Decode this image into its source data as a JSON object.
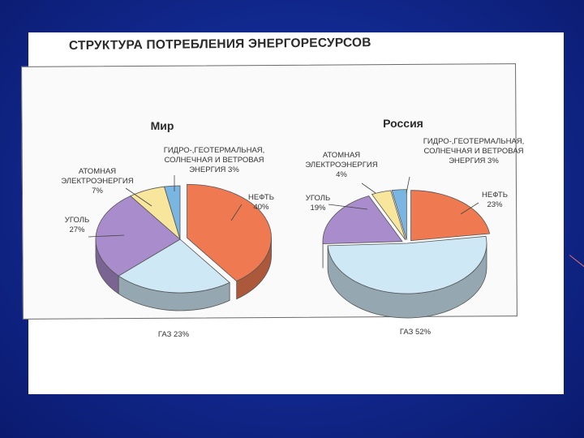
{
  "title": "СТРУКТУРА ПОТРЕБЛЕНИЯ ЭНЕРГОРЕСУРСОВ",
  "colors": {
    "oil": "#ef7a52",
    "gas": "#cfe8f6",
    "coal": "#a98ccb",
    "nuclear": "#f7e69b",
    "renewables": "#7ab6e2"
  },
  "chart_data": [
    {
      "type": "pie",
      "title": "Мир",
      "slices": [
        {
          "key": "oil",
          "label": [
            "НЕФТЬ",
            "40%"
          ],
          "value": 40
        },
        {
          "key": "gas",
          "label": [
            "ГАЗ 23%"
          ],
          "value": 23
        },
        {
          "key": "coal",
          "label": [
            "УГОЛЬ",
            "27%"
          ],
          "value": 27
        },
        {
          "key": "nuclear",
          "label": [
            "АТОМНАЯ",
            "ЭЛЕКТРОЭНЕРГИЯ",
            "7%"
          ],
          "value": 7
        },
        {
          "key": "renewables",
          "label": [
            "ГИДРО-,ГЕОТЕРМАЛЬНАЯ,",
            "СОЛНЕЧНАЯ И ВЕТРОВАЯ",
            "ЭНЕРГИЯ 3%"
          ],
          "value": 3
        }
      ]
    },
    {
      "type": "pie",
      "title": "Россия",
      "slices": [
        {
          "key": "oil",
          "label": [
            "НЕФТЬ",
            "23%"
          ],
          "value": 23
        },
        {
          "key": "gas",
          "label": [
            "ГАЗ 52%"
          ],
          "value": 52
        },
        {
          "key": "coal",
          "label": [
            "УГОЛЬ",
            "19%"
          ],
          "value": 19
        },
        {
          "key": "nuclear",
          "label": [
            "АТОМНАЯ",
            "ЭЛЕКТРОЭНЕРГИЯ",
            "4%"
          ],
          "value": 4
        },
        {
          "key": "renewables",
          "label": [
            "ГИДРО-,ГЕОТЕРМАЛЬНАЯ,",
            "СОЛНЕЧНАЯ И ВЕТРОВАЯ",
            "ЭНЕРГИЯ 3%"
          ],
          "value": 3
        }
      ]
    }
  ]
}
